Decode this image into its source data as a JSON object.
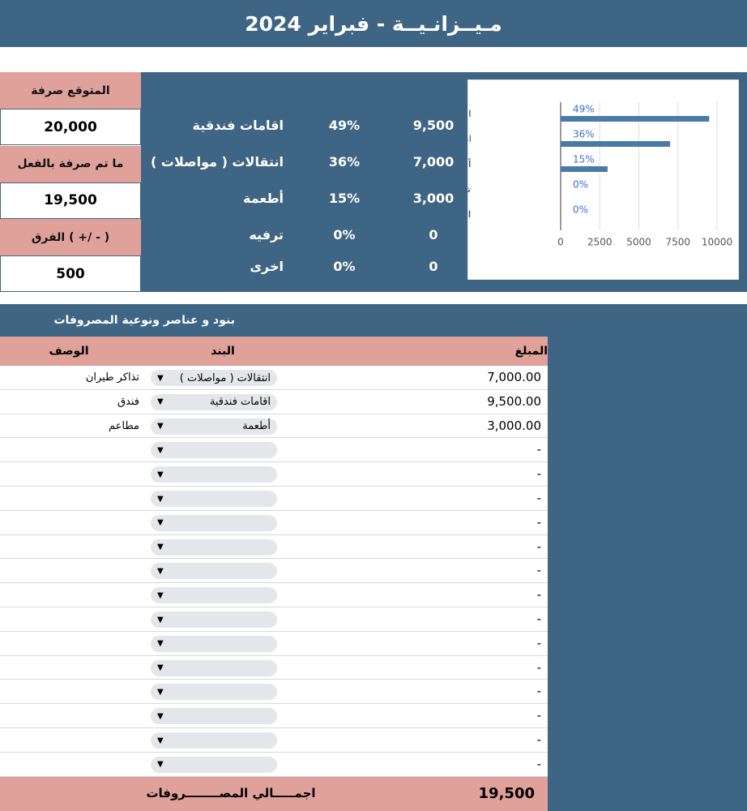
{
  "title": "مـيــزانـيــة - فبراير 2024",
  "summary": [
    {
      "label": "المتوقع صرفة",
      "value": "20,000"
    },
    {
      "label": "ما تم صرفة بالفعل",
      "value": "19,500"
    },
    {
      "label": "الفرق ( +/ - )",
      "value": "500"
    }
  ],
  "breakdown": [
    {
      "category": "اقامات فندقية",
      "percent": "49%",
      "amount": "9,500"
    },
    {
      "category": "انتقالات ( مواصلات )",
      "percent": "36%",
      "amount": "7,000"
    },
    {
      "category": "أطعمة",
      "percent": "15%",
      "amount": "3,000"
    },
    {
      "category": "ترفيه",
      "percent": "0%",
      "amount": "0"
    },
    {
      "category": "اخرى",
      "percent": "0%",
      "amount": "0"
    }
  ],
  "chart_data": {
    "type": "bar",
    "orientation": "horizontal",
    "categories": [
      "اقامات فندقية",
      "انتقالات ( مواصلات )",
      "أطعمة",
      "ترفيه",
      "اخرى"
    ],
    "values": [
      9500,
      7000,
      3000,
      0,
      0
    ],
    "bar_labels": [
      "49%",
      "36%",
      "15%",
      "0%",
      "0%"
    ],
    "color": "#4a7ba6",
    "xlim": [
      0,
      10000
    ],
    "xticks": [
      0,
      2500,
      5000,
      7500,
      10000
    ],
    "grid": true
  },
  "expenses": {
    "title": "بنود و عناصر ونوعية المصروفات",
    "headers": {
      "amount": "المبلغ",
      "item": "البند",
      "description": "الوصف"
    },
    "rows": [
      {
        "amount": "7,000.00",
        "item": "انتقالات ( مواصلات )",
        "description": "تذاكر طيران"
      },
      {
        "amount": "9,500.00",
        "item": "اقامات فندقية",
        "description": "فندق"
      },
      {
        "amount": "3,000.00",
        "item": "أطعمة",
        "description": "مطاعم"
      },
      {
        "amount": "-"
      },
      {
        "amount": "-"
      },
      {
        "amount": "-"
      },
      {
        "amount": "-"
      },
      {
        "amount": "-"
      },
      {
        "amount": "-"
      },
      {
        "amount": "-"
      },
      {
        "amount": "-"
      },
      {
        "amount": "-"
      },
      {
        "amount": "-"
      },
      {
        "amount": "-"
      },
      {
        "amount": "-"
      },
      {
        "amount": "-"
      },
      {
        "amount": "-"
      }
    ],
    "total_label": "اجمـــــالي المصــــــــروفات",
    "total_value": "19,500"
  }
}
